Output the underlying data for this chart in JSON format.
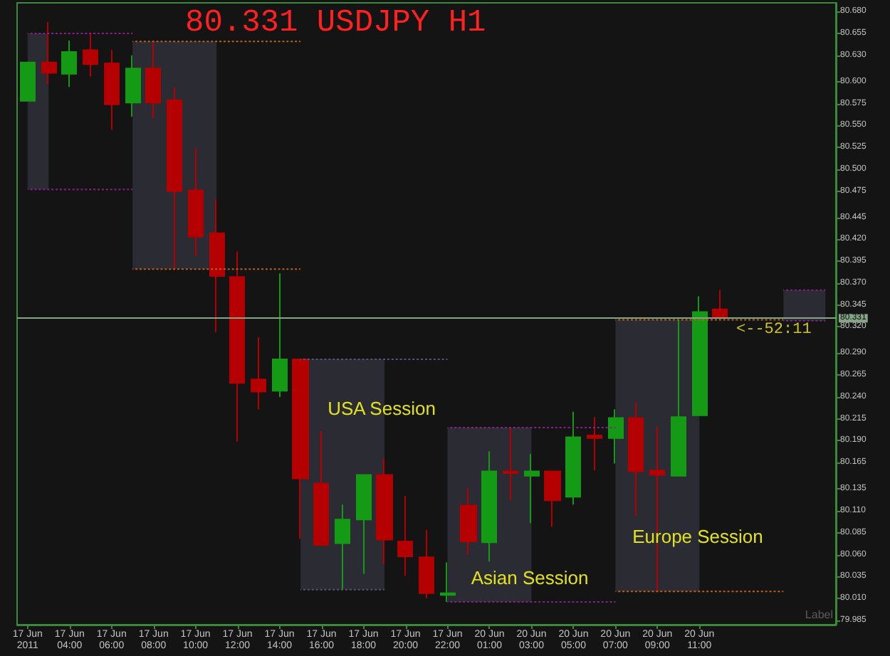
{
  "chart_data": {
    "type": "candlestick",
    "title": "80.331 USDJPY H1",
    "categories": [
      "17 Jun 2011",
      null,
      "17 Jun 04:00",
      null,
      "17 Jun 06:00",
      null,
      "17 Jun 08:00",
      null,
      "17 Jun 10:00",
      null,
      "17 Jun 12:00",
      null,
      "17 Jun 14:00",
      null,
      "17 Jun 16:00",
      null,
      "17 Jun 18:00",
      null,
      "17 Jun 20:00",
      null,
      "17 Jun 22:00",
      null,
      "20 Jun 01:00",
      null,
      "20 Jun 03:00",
      null,
      "20 Jun 05:00",
      null,
      "20 Jun 07:00",
      null,
      "20 Jun 09:00",
      null,
      "20 Jun 11:00",
      null,
      null,
      null,
      null,
      null,
      null
    ],
    "ohlc": [
      [
        80.578,
        80.622,
        80.578,
        80.622
      ],
      [
        80.622,
        80.668,
        80.597,
        80.61
      ],
      [
        80.609,
        80.647,
        80.594,
        80.634
      ],
      [
        80.636,
        80.656,
        80.606,
        80.62
      ],
      [
        80.621,
        80.636,
        80.545,
        80.574
      ],
      [
        80.576,
        80.63,
        80.56,
        80.615
      ],
      [
        80.615,
        80.646,
        80.558,
        80.576
      ],
      [
        80.579,
        80.594,
        80.386,
        80.475
      ],
      [
        80.476,
        80.524,
        80.401,
        80.423
      ],
      [
        80.427,
        80.466,
        80.314,
        80.378
      ],
      [
        80.377,
        80.406,
        80.189,
        80.256
      ],
      [
        80.26,
        80.308,
        80.226,
        80.246
      ],
      [
        80.247,
        80.381,
        80.24,
        80.283
      ],
      [
        80.283,
        80.283,
        80.078,
        80.147
      ],
      [
        80.141,
        80.201,
        80.07,
        80.071
      ],
      [
        80.073,
        80.117,
        80.02,
        80.1
      ],
      [
        80.1,
        80.151,
        80.038,
        80.151
      ],
      [
        80.151,
        80.17,
        80.049,
        80.077
      ],
      [
        80.075,
        80.127,
        80.036,
        80.058
      ],
      [
        80.057,
        80.088,
        80.01,
        80.016
      ],
      [
        80.014,
        80.051,
        80.006,
        80.016
      ],
      [
        80.116,
        80.136,
        80.06,
        80.075
      ],
      [
        80.074,
        80.178,
        80.052,
        80.155
      ],
      [
        80.155,
        80.205,
        80.122,
        80.153
      ],
      [
        80.15,
        80.175,
        80.096,
        80.155
      ],
      [
        80.155,
        80.155,
        80.092,
        80.122
      ],
      [
        80.126,
        80.223,
        80.117,
        80.194
      ],
      [
        80.196,
        80.217,
        80.156,
        80.193
      ],
      [
        80.193,
        80.226,
        80.164,
        80.216
      ],
      [
        80.216,
        80.234,
        80.104,
        80.155
      ],
      [
        80.156,
        80.206,
        80.018,
        80.151
      ],
      [
        80.15,
        80.328,
        80.15,
        80.217
      ],
      [
        80.219,
        80.355,
        80.219,
        80.337
      ],
      [
        80.34,
        80.362,
        80.328,
        80.331
      ],
      null,
      null,
      null,
      null,
      null
    ],
    "colors": [
      "#159a15",
      "#b40000",
      "#159a15",
      "#b40000",
      "#b40000",
      "#159a15",
      "#b40000",
      "#b40000",
      "#b40000",
      "#b40000",
      "#b40000",
      "#b40000",
      "#159a15",
      "#b40000",
      "#b40000",
      "#159a15",
      "#159a15",
      "#b40000",
      "#b40000",
      "#b40000",
      "#159a15",
      "#b40000",
      "#159a15",
      "#b40000",
      "#159a15",
      "#b40000",
      "#159a15",
      "#b40000",
      "#159a15",
      "#b40000",
      "#b40000",
      "#159a15",
      "#159a15",
      "#b40000",
      null,
      null,
      null,
      null,
      null
    ],
    "line_style": "dotted",
    "series": [
      {
        "type": "line",
        "color": "#8a208a",
        "values": [
          80.655,
          80.655,
          80.655,
          80.655,
          80.655,
          80.655,
          null,
          null,
          null,
          null,
          null,
          null,
          null,
          null,
          null,
          null,
          null,
          null,
          null,
          null,
          null,
          null,
          null,
          null,
          null,
          null,
          null,
          null,
          null,
          null,
          null,
          null,
          null,
          null,
          null,
          null,
          null,
          null,
          null
        ],
        "lower": [
          80.477,
          80.477,
          null,
          null,
          null,
          null,
          null,
          null,
          null,
          null,
          null,
          null,
          null,
          null,
          null,
          null,
          null,
          null,
          null,
          null,
          null,
          null,
          null,
          null,
          null,
          null,
          null,
          null,
          null,
          null,
          null,
          null,
          null,
          null,
          null,
          null,
          null,
          null,
          null
        ],
        "upper": [
          80.655,
          80.655,
          null,
          null,
          null,
          null,
          null,
          null,
          null,
          null,
          null,
          null,
          null,
          null,
          null,
          null,
          null,
          null,
          null,
          null,
          null,
          null,
          null,
          null,
          null,
          null,
          null,
          null,
          null,
          null,
          null,
          null,
          null,
          null,
          null,
          null,
          null,
          null,
          null
        ]
      },
      {
        "type": "line",
        "color": "#8a208a",
        "values": [
          80.477,
          80.477,
          80.477,
          80.477,
          80.477,
          80.477,
          null,
          null,
          null,
          null,
          null,
          null,
          null,
          null,
          null,
          null,
          null,
          null,
          null,
          null,
          null,
          null,
          null,
          null,
          null,
          null,
          null,
          null,
          null,
          null,
          null,
          null,
          null,
          null,
          null,
          null,
          null,
          null,
          null
        ]
      },
      {
        "type": "line",
        "color": "#c0601a",
        "values": [
          null,
          null,
          null,
          null,
          null,
          80.646,
          80.646,
          80.646,
          80.646,
          80.646,
          80.646,
          80.646,
          80.646,
          80.646,
          null,
          null,
          null,
          null,
          null,
          null,
          null,
          null,
          null,
          null,
          null,
          null,
          null,
          null,
          null,
          null,
          null,
          null,
          null,
          null,
          null,
          null,
          null,
          null,
          null
        ],
        "lower": [
          null,
          null,
          null,
          null,
          null,
          80.386,
          80.386,
          80.386,
          80.386,
          80.386,
          null,
          null,
          null,
          null,
          null,
          null,
          null,
          null,
          null,
          null,
          null,
          null,
          null,
          null,
          null,
          null,
          null,
          null,
          null,
          null,
          null,
          null,
          null,
          null,
          null,
          null,
          null,
          null,
          null
        ],
        "upper": [
          null,
          null,
          null,
          null,
          null,
          80.646,
          80.646,
          80.646,
          80.646,
          80.646,
          null,
          null,
          null,
          null,
          null,
          null,
          null,
          null,
          null,
          null,
          null,
          null,
          null,
          null,
          null,
          null,
          null,
          null,
          null,
          null,
          null,
          null,
          null,
          null,
          null,
          null,
          null,
          null,
          null
        ]
      },
      {
        "type": "line",
        "color": "#c0601a",
        "values": [
          null,
          null,
          null,
          null,
          null,
          80.386,
          80.386,
          80.386,
          80.386,
          80.386,
          80.386,
          80.386,
          80.386,
          80.386,
          null,
          null,
          null,
          null,
          null,
          null,
          null,
          null,
          null,
          null,
          null,
          null,
          null,
          null,
          null,
          null,
          null,
          null,
          null,
          null,
          null,
          null,
          null,
          null,
          null
        ]
      },
      {
        "type": "line",
        "color": "#55557a",
        "values": [
          null,
          null,
          null,
          null,
          null,
          null,
          null,
          null,
          null,
          null,
          null,
          null,
          null,
          80.283,
          80.283,
          80.283,
          80.283,
          80.283,
          80.283,
          80.283,
          80.283,
          null,
          null,
          null,
          null,
          null,
          null,
          null,
          null,
          null,
          null,
          null,
          null,
          null,
          null,
          null,
          null,
          null,
          null
        ],
        "lower": [
          null,
          null,
          null,
          null,
          null,
          null,
          null,
          null,
          null,
          null,
          null,
          null,
          null,
          80.02,
          80.02,
          80.02,
          80.02,
          80.02,
          null,
          null,
          null,
          null,
          null,
          null,
          null,
          null,
          null,
          null,
          null,
          null,
          null,
          null,
          null,
          null,
          null,
          null,
          null,
          null,
          null
        ],
        "upper": [
          null,
          null,
          null,
          null,
          null,
          null,
          null,
          null,
          null,
          null,
          null,
          null,
          null,
          80.283,
          80.283,
          80.283,
          80.283,
          80.283,
          null,
          null,
          null,
          null,
          null,
          null,
          null,
          null,
          null,
          null,
          null,
          null,
          null,
          null,
          null,
          null,
          null,
          null,
          null,
          null,
          null
        ]
      },
      {
        "type": "line",
        "color": "#55557a",
        "values": [
          null,
          null,
          null,
          null,
          null,
          null,
          null,
          null,
          null,
          null,
          null,
          null,
          null,
          80.02,
          80.02,
          80.02,
          80.02,
          80.02,
          null,
          null,
          null,
          null,
          null,
          null,
          null,
          null,
          null,
          null,
          null,
          null,
          null,
          null,
          null,
          null,
          null,
          null,
          null,
          null,
          null
        ]
      },
      {
        "type": "line",
        "color": "#8a208a",
        "values": [
          null,
          null,
          null,
          null,
          null,
          null,
          null,
          null,
          null,
          null,
          null,
          null,
          null,
          null,
          null,
          null,
          null,
          null,
          null,
          null,
          80.205,
          80.205,
          80.205,
          80.205,
          80.205,
          80.205,
          80.205,
          80.205,
          80.205,
          null,
          null,
          null,
          null,
          null,
          null,
          null,
          null,
          null,
          null
        ],
        "lower": [
          null,
          null,
          null,
          null,
          null,
          null,
          null,
          null,
          null,
          null,
          null,
          null,
          null,
          null,
          null,
          null,
          null,
          null,
          null,
          null,
          80.006,
          80.006,
          80.006,
          80.006,
          80.006,
          null,
          null,
          null,
          null,
          null,
          null,
          null,
          null,
          null,
          null,
          null,
          null,
          null,
          null
        ],
        "upper": [
          null,
          null,
          null,
          null,
          null,
          null,
          null,
          null,
          null,
          null,
          null,
          null,
          null,
          null,
          null,
          null,
          null,
          null,
          null,
          null,
          80.205,
          80.205,
          80.205,
          80.205,
          80.205,
          null,
          null,
          null,
          null,
          null,
          null,
          null,
          null,
          null,
          null,
          null,
          null,
          null,
          null
        ]
      },
      {
        "type": "line",
        "color": "#8a208a",
        "values": [
          null,
          null,
          null,
          null,
          null,
          null,
          null,
          null,
          null,
          null,
          null,
          null,
          null,
          null,
          null,
          null,
          null,
          null,
          null,
          null,
          80.006,
          80.006,
          80.006,
          80.006,
          80.006,
          80.006,
          80.006,
          80.006,
          80.006,
          null,
          null,
          null,
          null,
          null,
          null,
          null,
          null,
          null,
          null
        ]
      },
      {
        "type": "line",
        "color": "#c0601a",
        "values": [
          null,
          null,
          null,
          null,
          null,
          null,
          null,
          null,
          null,
          null,
          null,
          null,
          null,
          null,
          null,
          null,
          null,
          null,
          null,
          null,
          null,
          null,
          null,
          null,
          null,
          null,
          null,
          null,
          80.328,
          80.328,
          80.328,
          80.328,
          80.328,
          80.328,
          80.328,
          80.328,
          80.328,
          null,
          null
        ],
        "lower": [
          null,
          null,
          null,
          null,
          null,
          null,
          null,
          null,
          null,
          null,
          null,
          null,
          null,
          null,
          null,
          null,
          null,
          null,
          null,
          null,
          null,
          null,
          null,
          null,
          null,
          null,
          null,
          null,
          80.018,
          80.018,
          80.018,
          80.018,
          80.018,
          null,
          null,
          null,
          null,
          null,
          null
        ],
        "upper": [
          null,
          null,
          null,
          null,
          null,
          null,
          null,
          null,
          null,
          null,
          null,
          null,
          null,
          null,
          null,
          null,
          null,
          null,
          null,
          null,
          null,
          null,
          null,
          null,
          null,
          null,
          null,
          null,
          80.328,
          80.328,
          80.328,
          80.328,
          80.328,
          null,
          null,
          null,
          null,
          null,
          null
        ]
      },
      {
        "type": "line",
        "color": "#c0601a",
        "values": [
          null,
          null,
          null,
          null,
          null,
          null,
          null,
          null,
          null,
          null,
          null,
          null,
          null,
          null,
          null,
          null,
          null,
          null,
          null,
          null,
          null,
          null,
          null,
          null,
          null,
          null,
          null,
          null,
          80.018,
          80.018,
          80.018,
          80.018,
          80.018,
          80.018,
          80.018,
          80.018,
          80.018,
          null,
          null
        ]
      },
      {
        "type": "line",
        "color": "#8a208a",
        "values": [
          null,
          null,
          null,
          null,
          null,
          null,
          null,
          null,
          null,
          null,
          null,
          null,
          null,
          null,
          null,
          null,
          null,
          null,
          null,
          null,
          null,
          null,
          null,
          null,
          null,
          null,
          null,
          null,
          null,
          null,
          null,
          null,
          null,
          null,
          null,
          null,
          80.362,
          80.362,
          80.362
        ],
        "lower": [
          null,
          null,
          null,
          null,
          null,
          null,
          null,
          null,
          null,
          null,
          null,
          null,
          null,
          null,
          null,
          null,
          null,
          null,
          null,
          null,
          null,
          null,
          null,
          null,
          null,
          null,
          null,
          null,
          null,
          null,
          null,
          null,
          null,
          null,
          null,
          null,
          80.327,
          80.327,
          80.327
        ],
        "upper": [
          null,
          null,
          null,
          null,
          null,
          null,
          null,
          null,
          null,
          null,
          null,
          null,
          null,
          null,
          null,
          null,
          null,
          null,
          null,
          null,
          null,
          null,
          null,
          null,
          null,
          null,
          null,
          null,
          null,
          null,
          null,
          null,
          null,
          null,
          null,
          null,
          80.362,
          80.362,
          80.362
        ]
      },
      {
        "type": "line",
        "color": "#8a208a",
        "values": [
          null,
          null,
          null,
          null,
          null,
          null,
          null,
          null,
          null,
          null,
          null,
          null,
          null,
          null,
          null,
          null,
          null,
          null,
          null,
          null,
          null,
          null,
          null,
          null,
          null,
          null,
          null,
          null,
          null,
          null,
          null,
          null,
          null,
          null,
          null,
          null,
          80.327,
          80.327,
          80.327
        ]
      }
    ],
    "ylim": [
      79.98,
      80.69
    ],
    "yticks": [
      {
        "value": 80.68,
        "label": "80.680"
      },
      80.655,
      {
        "value": 80.63,
        "label": "80.630"
      },
      {
        "value": 80.6,
        "label": "80.600"
      },
      80.575,
      {
        "value": 80.55,
        "label": "80.550"
      },
      80.525,
      {
        "value": 80.5,
        "label": "80.500"
      },
      80.475,
      80.445,
      {
        "value": 80.42,
        "label": "80.420"
      },
      80.395,
      {
        "value": 80.37,
        "label": "80.370"
      },
      80.345,
      {
        "value": 80.32,
        "label": "80.320"
      },
      {
        "value": 80.29,
        "label": "80.290"
      },
      80.265,
      {
        "value": 80.24,
        "label": "80.240"
      },
      80.215,
      {
        "value": 80.19,
        "label": "80.190"
      },
      80.165,
      80.135,
      {
        "value": 80.11,
        "label": "80.110"
      },
      80.085,
      {
        "value": 80.06,
        "label": "80.060"
      },
      80.035,
      {
        "value": 80.01,
        "label": "80.010"
      },
      79.985
    ],
    "ref_lines": [
      {
        "axis": "y",
        "value": 80.331,
        "label": "80.331",
        "color": "#86a486"
      }
    ],
    "annotations": [
      "USA Session",
      "Asian Session",
      "Europe Session",
      "<--52:11",
      "Label"
    ]
  }
}
